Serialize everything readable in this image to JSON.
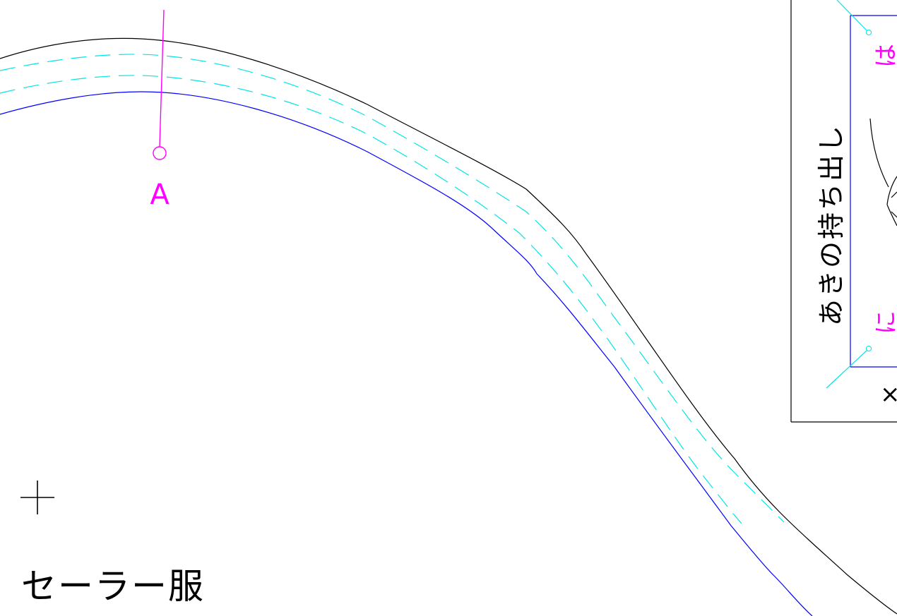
{
  "drawing": {
    "point_label": "A",
    "title": "セーラー服",
    "vertical_label": "あきの持ち出し",
    "mark_top": "は",
    "mark_bottom": "に",
    "mark_x": "×"
  },
  "colors": {
    "background": "#ffffff",
    "outline": "#000000",
    "seam": "#0000ff",
    "stitch": "#00e5e5",
    "marker": "#ff00ff"
  }
}
